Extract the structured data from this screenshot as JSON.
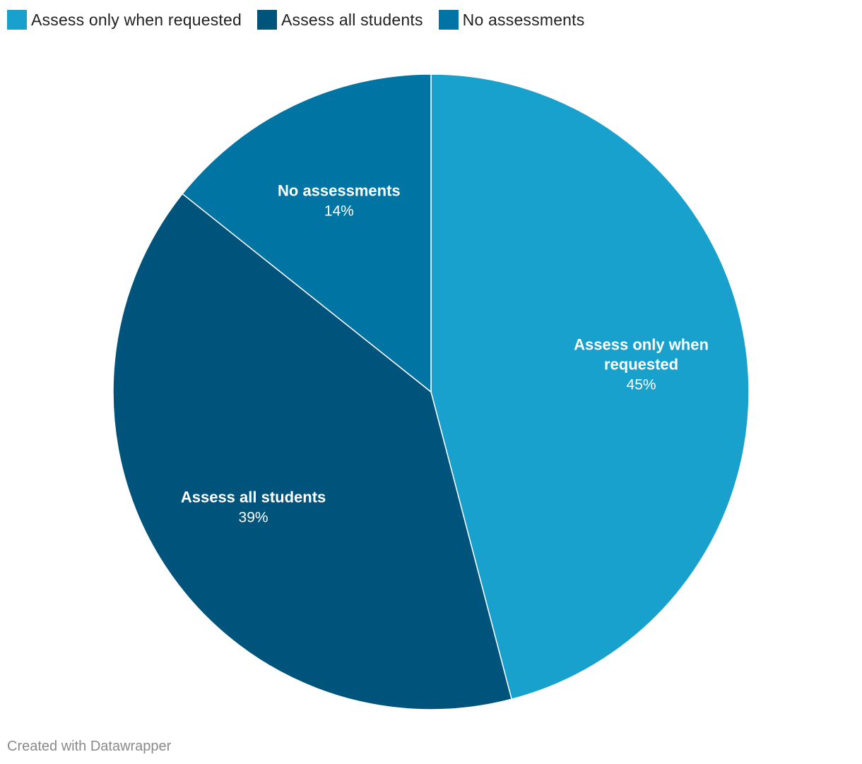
{
  "chart_data": {
    "type": "pie",
    "slices": [
      {
        "label": "Assess only when requested",
        "label_lines": [
          "Assess only when",
          "requested"
        ],
        "value": 45,
        "value_label": "45%",
        "color": "#18a1cd"
      },
      {
        "label": "Assess all students",
        "label_lines": [
          "Assess all students"
        ],
        "value": 39,
        "value_label": "39%",
        "color": "#00547b"
      },
      {
        "label": "No assessments",
        "label_lines": [
          "No assessments"
        ],
        "value": 14,
        "value_label": "14%",
        "color": "#0074a3"
      }
    ],
    "legend": {
      "placement": "top-left",
      "items": [
        {
          "label": "Assess only when requested",
          "color": "#18a1cd"
        },
        {
          "label": "Assess all students",
          "color": "#00547b"
        },
        {
          "label": "No assessments",
          "color": "#0074a3"
        }
      ]
    }
  },
  "footer": {
    "credit": "Created with Datawrapper"
  }
}
